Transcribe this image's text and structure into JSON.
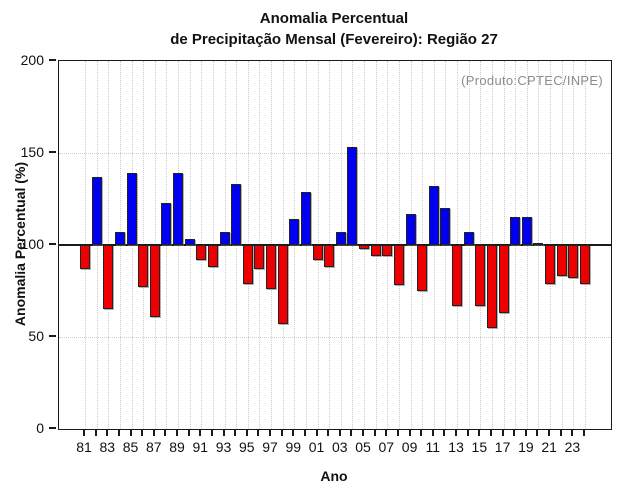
{
  "chart_data": {
    "type": "bar",
    "title_line1": "Anomalia Percentual",
    "title_line2": "de Precipitação Mensal (Fevereiro): Região 27",
    "annotation": "(Produto:CPTEC/INPE)",
    "xlabel": "Ano",
    "ylabel": "Anomalia Percentual (%)",
    "ylim": [
      0,
      200
    ],
    "yticks": [
      0,
      50,
      100,
      150,
      200
    ],
    "hgrid_values": [
      50,
      150
    ],
    "baseline": 100,
    "grid": "dotted",
    "legend_position": "none",
    "categories": [
      "81",
      "82",
      "83",
      "84",
      "85",
      "86",
      "87",
      "88",
      "89",
      "90",
      "91",
      "92",
      "93",
      "94",
      "95",
      "96",
      "97",
      "98",
      "99",
      "00",
      "01",
      "02",
      "03",
      "04",
      "05",
      "06",
      "07",
      "08",
      "09",
      "10",
      "11",
      "12",
      "13",
      "14",
      "15",
      "16",
      "17",
      "18",
      "19",
      "20",
      "21",
      "22",
      "23",
      "24"
    ],
    "x_tick_labels": [
      "81",
      "83",
      "85",
      "87",
      "89",
      "91",
      "93",
      "95",
      "97",
      "99",
      "01",
      "03",
      "05",
      "07",
      "09",
      "11",
      "13",
      "15",
      "17",
      "19",
      "21",
      "23"
    ],
    "values": [
      87,
      137,
      65,
      107,
      139,
      77,
      61,
      123,
      139,
      103,
      92,
      88,
      107,
      133,
      79,
      87,
      76,
      57,
      114,
      129,
      92,
      88,
      107,
      153,
      98,
      94,
      94,
      78,
      117,
      75,
      132,
      120,
      67,
      107,
      67,
      55,
      63,
      115,
      115,
      101,
      79,
      83,
      82,
      79
    ],
    "colors": {
      "above_baseline": "#0000ee",
      "below_baseline": "#ee0000",
      "axis": "#1a1a1a",
      "grid": "#cccccc",
      "annotation": "#8c8c8c",
      "text": "#111111"
    }
  }
}
